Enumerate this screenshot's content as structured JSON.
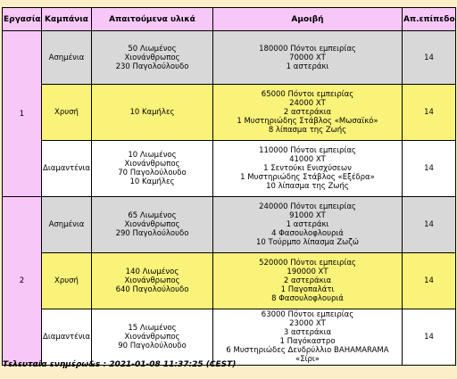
{
  "headers": {
    "task": "Εργασία",
    "campaign": "Καμπάνια",
    "materials": "Απαιτούμενα υλικά",
    "reward": "Αμοιβή",
    "level": "Απ.επίπεδο"
  },
  "tasks": [
    {
      "number": "1",
      "rows": [
        {
          "campaign": "Ασημένια",
          "materials": [
            "50 Λιωμένος",
            "Χιονάνθρωπος",
            "230 Παγολούλουδο"
          ],
          "reward": [
            "180000 Πόντοι εμπειρίας",
            "70000 ΧΤ",
            "1 αστεράκι"
          ],
          "level": "14"
        },
        {
          "campaign": "Χρυσή",
          "materials": [
            "10 Καμήλες"
          ],
          "reward": [
            "65000 Πόντοι εμπειρίας",
            "24000 ΧΤ",
            "2 αστεράκια",
            "1 Μυστηριώδης Στάβλος «Μωσαϊκό»",
            "8 λίπασμα της Ζωής"
          ],
          "level": "14"
        },
        {
          "campaign": "Διαμαντένια",
          "materials": [
            "10 Λιωμένος",
            "Χιονάνθρωπος",
            "70 Παγολούλουδο",
            "10 Καμήλες"
          ],
          "reward": [
            "110000 Πόντοι εμπειρίας",
            "41000 ΧΤ",
            "1 Σεντούκι Ενισχύσεων",
            "1 Μυστηριώδης Στάβλος «Εξέδρα»",
            "10 λίπασμα της Ζωής"
          ],
          "level": "14"
        }
      ]
    },
    {
      "number": "2",
      "rows": [
        {
          "campaign": "Ασημένια",
          "materials": [
            "65 Λιωμένος",
            "Χιονάνθρωπος",
            "290 Παγολούλουδο"
          ],
          "reward": [
            "240000 Πόντοι εμπειρίας",
            "91000 ΧΤ",
            "1 αστεράκι",
            "4 Φασουλοφλουριά",
            "10 Τούρμπο λίπασμα Ζωζώ"
          ],
          "level": "14"
        },
        {
          "campaign": "Χρυσή",
          "materials": [
            "140 Λιωμένος",
            "Χιονάνθρωπος",
            "640 Παγολούλουδο"
          ],
          "reward": [
            "520000 Πόντοι εμπειρίας",
            "190000 ΧΤ",
            "2 αστεράκια",
            "1 Παγοπαλάτι",
            "8 Φασουλοφλουριά"
          ],
          "level": "14"
        },
        {
          "campaign": "Διαμαντένια",
          "materials": [
            "15 Λιωμένος",
            "Χιονάνθρωπος",
            "90 Παγολούλουδο"
          ],
          "reward": [
            "63000 Πόντοι εμπειρίας",
            "23000 ΧΤ",
            "3 αστεράκια",
            "1 Παγόκαστρο",
            "6 Μυστηριώδες Δενδρύλλιο BAHAMARAMA",
            "«Σίρι»"
          ],
          "level": "14"
        }
      ]
    }
  ],
  "footer": "Τελευταία ενημέρω&s : 2021-01-08 11:37:25 (CEST)",
  "colors": {
    "page_background": "#fbeec9",
    "header_background": "#f7c7f7",
    "silver_row": "#d8d8d8",
    "gold_row": "#faf37a",
    "diamond_row": "#ffffff"
  }
}
